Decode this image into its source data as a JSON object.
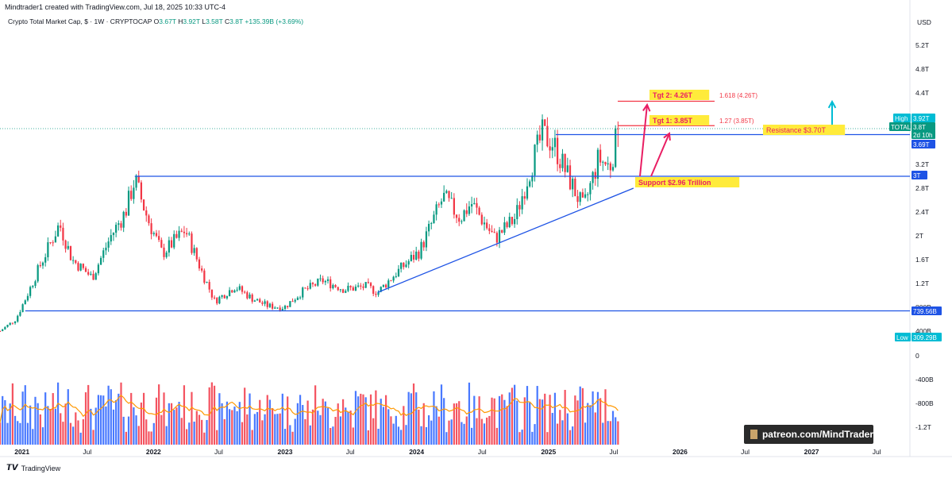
{
  "header": {
    "created_by": "Mindtrader1 created with TradingView.com, Jul 18, 2025 10:33 UTC-4"
  },
  "symbol": {
    "name": "Crypto Total Market Cap, $ · 1W · CRYPTOCAP",
    "o_label": "O",
    "o": "3.67T",
    "h_label": "H",
    "h": "3.92T",
    "l_label": "L",
    "l": "3.58T",
    "c_label": "C",
    "c": "3.8T",
    "change": "+135.39B (+3.69%)"
  },
  "price_axis": {
    "currency": "USD",
    "ticks": [
      "5.2T",
      "4.8T",
      "4.4T",
      "3.2T",
      "2.8T",
      "2.4T",
      "2T",
      "1.6T",
      "1.2T",
      "800B",
      "400B"
    ],
    "volume_ticks": [
      "0",
      "-400B",
      "-800B",
      "-1.2T"
    ]
  },
  "time_axis": [
    "2021",
    "Jul",
    "2022",
    "Jul",
    "2023",
    "Jul",
    "2024",
    "Jul",
    "2025",
    "Jul",
    "2026",
    "Jul",
    "2027",
    "Jul"
  ],
  "badges": {
    "high_label": "High",
    "high_value": "3.92T",
    "total_label": "TOTAL",
    "total_value": "3.8T",
    "countdown": "2d 10h",
    "level_369": "3.69T",
    "level_3t": "3T",
    "level_739": "739.56B",
    "low_label": "Low",
    "low_value": "309.29B"
  },
  "annotations": {
    "tgt2": "Tgt 2: 4.26T",
    "tgt1": "Tgt 1: 3.85T",
    "fib_1618": "1.618 (4.26T)",
    "fib_127": "1.27 (3.85T)",
    "resistance": "Resistance $3.70T",
    "support": "Support $2.96 Trillion"
  },
  "watermark": "patreon.com/MindTrader",
  "footer_logo": "TradingView",
  "colors": {
    "up": "#089981",
    "down": "#f23645",
    "line": "#1e53e5",
    "target": "#e91e63",
    "arrow": "#00bcd4",
    "ma": "#ff9800"
  },
  "chart_data": {
    "type": "candlestick",
    "title": "Crypto Total Market Cap, $ · 1W · CRYPTOCAP",
    "ylabel": "USD",
    "ylim": [
      0.3,
      5.4
    ],
    "yunit": "T",
    "x_start": "2020-11",
    "x_end": "2027-10",
    "anchors": [
      [
        "2020-11-01",
        0.4
      ],
      [
        "2020-12-15",
        0.6
      ],
      [
        "2021-01-15",
        1.0
      ],
      [
        "2021-02-20",
        1.5
      ],
      [
        "2021-04-15",
        2.2
      ],
      [
        "2021-05-20",
        1.6
      ],
      [
        "2021-07-15",
        1.3
      ],
      [
        "2021-09-05",
        2.0
      ],
      [
        "2021-10-15",
        2.4
      ],
      [
        "2021-11-10",
        2.95
      ],
      [
        "2021-12-15",
        2.3
      ],
      [
        "2022-01-25",
        1.7
      ],
      [
        "2022-03-30",
        2.1
      ],
      [
        "2022-05-15",
        1.4
      ],
      [
        "2022-06-20",
        0.9
      ],
      [
        "2022-08-15",
        1.15
      ],
      [
        "2022-10-01",
        0.95
      ],
      [
        "2022-11-15",
        0.82
      ],
      [
        "2022-12-30",
        0.8
      ],
      [
        "2023-02-15",
        1.05
      ],
      [
        "2023-04-15",
        1.25
      ],
      [
        "2023-06-15",
        1.1
      ],
      [
        "2023-08-15",
        1.15
      ],
      [
        "2023-09-15",
        1.05
      ],
      [
        "2023-11-01",
        1.35
      ],
      [
        "2024-01-10",
        1.75
      ],
      [
        "2024-03-15",
        2.65
      ],
      [
        "2024-05-01",
        2.3
      ],
      [
        "2024-06-01",
        2.55
      ],
      [
        "2024-08-05",
        1.95
      ],
      [
        "2024-10-01",
        2.3
      ],
      [
        "2024-11-15",
        3.2
      ],
      [
        "2024-12-15",
        3.7
      ],
      [
        "2025-01-15",
        3.55
      ],
      [
        "2025-02-20",
        3.05
      ],
      [
        "2025-04-08",
        2.45
      ],
      [
        "2025-05-20",
        3.3
      ],
      [
        "2025-06-20",
        3.15
      ],
      [
        "2025-07-15",
        3.8
      ]
    ],
    "levels": {
      "resistance": 3.7,
      "support_3t": 3.0,
      "low_line": 0.73956,
      "tgt1": 3.85,
      "tgt2": 4.26,
      "high": 3.92,
      "low": 0.30929,
      "last": 3.8
    },
    "trendline": [
      [
        "2023-09-15",
        1.05
      ],
      [
        "2025-08-25",
        2.8
      ]
    ],
    "volume_unit": "B",
    "volume_range": [
      0,
      1800
    ]
  }
}
